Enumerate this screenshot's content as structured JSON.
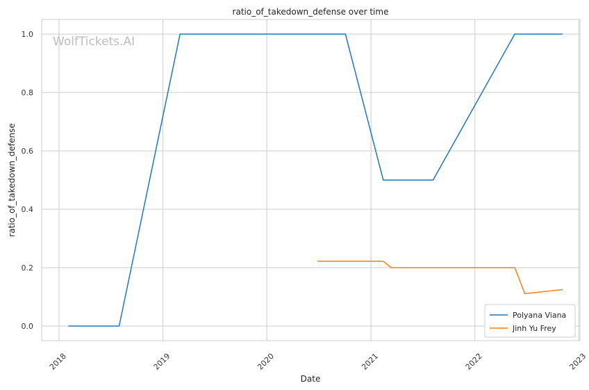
{
  "chart_data": {
    "type": "line",
    "title": "ratio_of_takedown_defense over time",
    "xlabel": "Date",
    "ylabel": "ratio_of_takedown_defense",
    "watermark": "WolfTickets.AI",
    "x_ticks": [
      "2018",
      "2019",
      "2020",
      "2021",
      "2022",
      "2023"
    ],
    "y_ticks": [
      "0.0",
      "0.2",
      "0.4",
      "0.6",
      "0.8",
      "1.0"
    ],
    "xlim": [
      "2017-11-01",
      "2023-01-05"
    ],
    "ylim": [
      -0.05,
      1.05
    ],
    "grid": true,
    "legend_position": "bottom-right",
    "series": [
      {
        "name": "Polyana Viana",
        "color": "#1f77b4",
        "points": [
          [
            "2018-02-03",
            0.0
          ],
          [
            "2018-07-31",
            0.0
          ],
          [
            "2019-03-02",
            1.0
          ],
          [
            "2020-10-03",
            1.0
          ],
          [
            "2021-02-13",
            0.5
          ],
          [
            "2021-08-07",
            0.5
          ],
          [
            "2022-05-21",
            1.0
          ],
          [
            "2022-11-05",
            1.0
          ]
        ]
      },
      {
        "name": "Jinh Yu Frey",
        "color": "#ff7f0e",
        "points": [
          [
            "2020-06-27",
            0.222
          ],
          [
            "2021-02-13",
            0.222
          ],
          [
            "2021-03-13",
            0.2
          ],
          [
            "2022-05-21",
            0.2
          ],
          [
            "2022-06-25",
            0.111
          ],
          [
            "2022-11-05",
            0.125
          ]
        ]
      }
    ]
  }
}
